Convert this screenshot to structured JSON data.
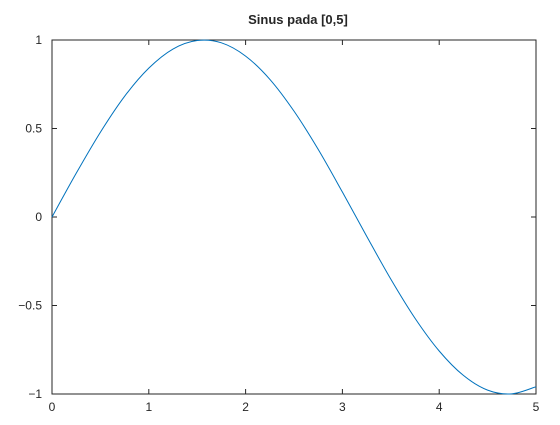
{
  "chart_data": {
    "type": "line",
    "title": "Sinus pada [0,5]",
    "xlabel": "",
    "ylabel": "",
    "xlim": [
      0,
      5
    ],
    "ylim": [
      -1,
      1
    ],
    "x_ticks": [
      0,
      1,
      2,
      3,
      4,
      5
    ],
    "x_tick_labels": [
      "0",
      "1",
      "2",
      "3",
      "4",
      "5"
    ],
    "y_ticks": [
      -1,
      -0.5,
      0,
      0.5,
      1
    ],
    "y_tick_labels": [
      "−1",
      "−0.5",
      "0",
      "0.5",
      "1"
    ],
    "grid": false,
    "legend": "none",
    "series": [
      {
        "color": "#0072bd",
        "x": [
          0,
          0.25,
          0.5,
          0.75,
          1.0,
          1.25,
          1.5,
          1.75,
          2.0,
          2.25,
          2.5,
          2.75,
          3.0,
          3.25,
          3.5,
          3.75,
          4.0,
          4.25,
          4.5,
          4.75,
          5.0
        ],
        "y": [
          0,
          0.247,
          0.479,
          0.682,
          0.841,
          0.949,
          0.997,
          0.984,
          0.909,
          0.778,
          0.598,
          0.382,
          0.141,
          -0.108,
          -0.351,
          -0.572,
          -0.757,
          -0.895,
          -0.978,
          -0.999,
          -0.959
        ]
      }
    ]
  }
}
